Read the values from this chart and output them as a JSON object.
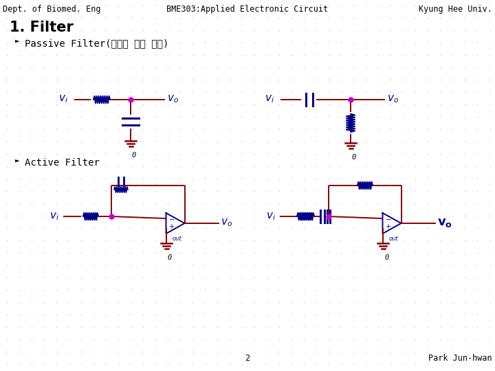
{
  "background_color": "#ffffff",
  "grid_color": "#d8d8e8",
  "header_left": "Dept. of Biomed. Eng",
  "header_center": "BME303:Applied Electronic Circuit",
  "header_right": "Kyung Hee Univ.",
  "title": "1. Filter",
  "passive_label": "Passive Filter(이득이 없는 필터)",
  "active_label": "Active Filter",
  "footer_center": "2",
  "footer_right": "Park Jun-hwan",
  "wire_color": "#880000",
  "component_color": "#000088",
  "dot_color": "#cc00cc",
  "ground_color": "#880000",
  "text_color": "#000000",
  "vi_color": "#000088",
  "header_fontsize": 8.5,
  "title_fontsize": 15,
  "section_fontsize": 10,
  "vi_fontsize": 11,
  "footer_fontsize": 8.5
}
